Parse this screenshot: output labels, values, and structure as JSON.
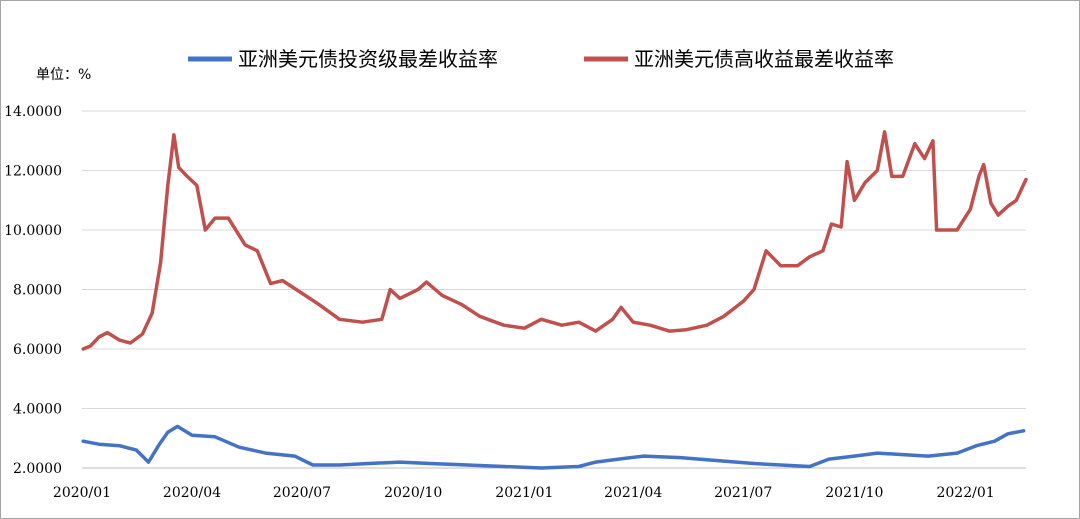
{
  "chart_data": {
    "type": "line",
    "unit_label": "单位：%",
    "ylim": [
      2.0,
      14.0
    ],
    "y_ticks": [
      "2.0000",
      "4.0000",
      "6.0000",
      "8.0000",
      "10.0000",
      "12.0000",
      "14.0000"
    ],
    "y_tick_values": [
      2,
      4,
      6,
      8,
      10,
      12,
      14
    ],
    "x_ticks": [
      "2020/01",
      "2020/04",
      "2020/07",
      "2020/10",
      "2021/01",
      "2021/04",
      "2021/07",
      "2021/10",
      "2022/01"
    ],
    "x_tick_dates": [
      "2020-01-01",
      "2020-04-01",
      "2020-07-01",
      "2020-10-01",
      "2021-01-01",
      "2021-04-01",
      "2021-07-01",
      "2021-10-01",
      "2022-01-01"
    ],
    "xlim": [
      "2020-01-01",
      "2022-02-20"
    ],
    "grid": "horizontal",
    "legend": "top",
    "series": [
      {
        "name": "亚洲美元债投资级最差收益率",
        "color": "#4472c4",
        "points": [
          [
            "2020-01-02",
            2.9
          ],
          [
            "2020-01-15",
            2.8
          ],
          [
            "2020-02-01",
            2.75
          ],
          [
            "2020-02-15",
            2.6
          ],
          [
            "2020-02-25",
            2.2
          ],
          [
            "2020-03-05",
            2.8
          ],
          [
            "2020-03-12",
            3.2
          ],
          [
            "2020-03-20",
            3.4
          ],
          [
            "2020-04-01",
            3.1
          ],
          [
            "2020-04-20",
            3.05
          ],
          [
            "2020-05-10",
            2.7
          ],
          [
            "2020-06-01",
            2.5
          ],
          [
            "2020-06-25",
            2.4
          ],
          [
            "2020-07-10",
            2.1
          ],
          [
            "2020-08-01",
            2.1
          ],
          [
            "2020-08-25",
            2.15
          ],
          [
            "2020-09-20",
            2.2
          ],
          [
            "2020-10-15",
            2.15
          ],
          [
            "2020-11-15",
            2.1
          ],
          [
            "2020-12-15",
            2.05
          ],
          [
            "2021-01-15",
            2.0
          ],
          [
            "2021-02-15",
            2.05
          ],
          [
            "2021-03-01",
            2.2
          ],
          [
            "2021-03-20",
            2.3
          ],
          [
            "2021-04-10",
            2.4
          ],
          [
            "2021-05-10",
            2.35
          ],
          [
            "2021-06-10",
            2.25
          ],
          [
            "2021-07-10",
            2.15
          ],
          [
            "2021-08-01",
            2.1
          ],
          [
            "2021-08-25",
            2.05
          ],
          [
            "2021-09-10",
            2.3
          ],
          [
            "2021-10-01",
            2.4
          ],
          [
            "2021-10-20",
            2.5
          ],
          [
            "2021-11-10",
            2.45
          ],
          [
            "2021-12-01",
            2.4
          ],
          [
            "2021-12-25",
            2.5
          ],
          [
            "2022-01-10",
            2.75
          ],
          [
            "2022-01-25",
            2.9
          ],
          [
            "2022-02-05",
            3.15
          ],
          [
            "2022-02-18",
            3.25
          ]
        ]
      },
      {
        "name": "亚洲美元债高收益最差收益率",
        "color": "#c0504d",
        "points": [
          [
            "2020-01-02",
            6.0
          ],
          [
            "2020-01-08",
            6.1
          ],
          [
            "2020-01-15",
            6.4
          ],
          [
            "2020-01-22",
            6.55
          ],
          [
            "2020-02-01",
            6.3
          ],
          [
            "2020-02-10",
            6.2
          ],
          [
            "2020-02-20",
            6.5
          ],
          [
            "2020-02-28",
            7.2
          ],
          [
            "2020-03-06",
            8.9
          ],
          [
            "2020-03-12",
            11.5
          ],
          [
            "2020-03-17",
            13.2
          ],
          [
            "2020-03-21",
            12.1
          ],
          [
            "2020-03-28",
            11.8
          ],
          [
            "2020-04-05",
            11.5
          ],
          [
            "2020-04-12",
            10.0
          ],
          [
            "2020-04-20",
            10.4
          ],
          [
            "2020-05-01",
            10.4
          ],
          [
            "2020-05-15",
            9.5
          ],
          [
            "2020-05-25",
            9.3
          ],
          [
            "2020-06-05",
            8.2
          ],
          [
            "2020-06-15",
            8.3
          ],
          [
            "2020-06-30",
            7.9
          ],
          [
            "2020-07-15",
            7.5
          ],
          [
            "2020-08-01",
            7.0
          ],
          [
            "2020-08-20",
            6.9
          ],
          [
            "2020-09-05",
            7.0
          ],
          [
            "2020-09-12",
            8.0
          ],
          [
            "2020-09-20",
            7.7
          ],
          [
            "2020-10-05",
            8.0
          ],
          [
            "2020-10-12",
            8.25
          ],
          [
            "2020-10-25",
            7.8
          ],
          [
            "2020-11-10",
            7.5
          ],
          [
            "2020-11-25",
            7.1
          ],
          [
            "2020-12-15",
            6.8
          ],
          [
            "2021-01-01",
            6.7
          ],
          [
            "2021-01-15",
            7.0
          ],
          [
            "2021-02-01",
            6.8
          ],
          [
            "2021-02-15",
            6.9
          ],
          [
            "2021-03-01",
            6.6
          ],
          [
            "2021-03-15",
            7.0
          ],
          [
            "2021-03-22",
            7.4
          ],
          [
            "2021-04-01",
            6.9
          ],
          [
            "2021-04-15",
            6.8
          ],
          [
            "2021-05-01",
            6.6
          ],
          [
            "2021-05-15",
            6.65
          ],
          [
            "2021-06-01",
            6.8
          ],
          [
            "2021-06-15",
            7.1
          ],
          [
            "2021-07-01",
            7.6
          ],
          [
            "2021-07-10",
            8.0
          ],
          [
            "2021-07-20",
            9.3
          ],
          [
            "2021-08-01",
            8.8
          ],
          [
            "2021-08-15",
            8.8
          ],
          [
            "2021-08-25",
            9.1
          ],
          [
            "2021-09-05",
            9.3
          ],
          [
            "2021-09-12",
            10.2
          ],
          [
            "2021-09-20",
            10.1
          ],
          [
            "2021-09-25",
            12.3
          ],
          [
            "2021-10-01",
            11.0
          ],
          [
            "2021-10-10",
            11.6
          ],
          [
            "2021-10-20",
            12.0
          ],
          [
            "2021-10-26",
            13.3
          ],
          [
            "2021-11-01",
            11.8
          ],
          [
            "2021-11-10",
            11.8
          ],
          [
            "2021-11-20",
            12.9
          ],
          [
            "2021-11-28",
            12.4
          ],
          [
            "2021-12-05",
            13.0
          ],
          [
            "2021-12-08",
            10.0
          ],
          [
            "2021-12-25",
            10.0
          ],
          [
            "2022-01-05",
            10.7
          ],
          [
            "2022-01-12",
            11.8
          ],
          [
            "2022-01-16",
            12.2
          ],
          [
            "2022-01-22",
            10.9
          ],
          [
            "2022-01-28",
            10.5
          ],
          [
            "2022-02-05",
            10.8
          ],
          [
            "2022-02-12",
            11.0
          ],
          [
            "2022-02-20",
            11.7
          ]
        ]
      }
    ]
  }
}
